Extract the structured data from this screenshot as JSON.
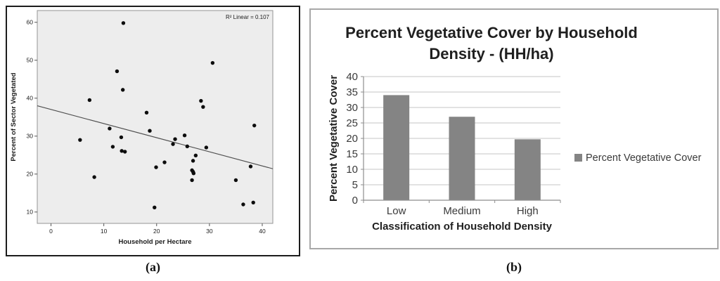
{
  "captions": {
    "a": "(a)",
    "b": "(b)"
  },
  "chart_data": [
    {
      "type": "scatter",
      "panel": "a",
      "title": "",
      "annotation": "R² Linear = 0.107",
      "r_squared_linear": 0.107,
      "xlabel": "Household per Hectare",
      "ylabel": "Percent of Sector Vegetated",
      "xlim": [
        -2.6,
        42.0
      ],
      "ylim": [
        7.0,
        63.1
      ],
      "xticks": [
        0,
        10,
        20,
        30,
        40
      ],
      "yticks": [
        10,
        20,
        30,
        40,
        50,
        60
      ],
      "grid": false,
      "points": [
        [
          13.7,
          59.8
        ],
        [
          12.5,
          47.1
        ],
        [
          13.6,
          42.2
        ],
        [
          7.3,
          39.5
        ],
        [
          30.6,
          49.3
        ],
        [
          28.4,
          39.3
        ],
        [
          28.8,
          37.7
        ],
        [
          18.1,
          36.2
        ],
        [
          38.5,
          32.8
        ],
        [
          11.1,
          32.0
        ],
        [
          18.7,
          31.4
        ],
        [
          25.3,
          30.2
        ],
        [
          13.3,
          29.7
        ],
        [
          5.5,
          29.0
        ],
        [
          23.5,
          29.2
        ],
        [
          23.1,
          27.9
        ],
        [
          25.8,
          27.3
        ],
        [
          29.4,
          27.0
        ],
        [
          11.7,
          27.2
        ],
        [
          13.4,
          26.1
        ],
        [
          14.0,
          25.9
        ],
        [
          27.4,
          24.9
        ],
        [
          26.9,
          23.5
        ],
        [
          21.5,
          23.1
        ],
        [
          19.9,
          21.8
        ],
        [
          37.8,
          22.0
        ],
        [
          26.7,
          21.0
        ],
        [
          26.9,
          20.6
        ],
        [
          27.0,
          20.2
        ],
        [
          26.7,
          18.4
        ],
        [
          35.0,
          18.4
        ],
        [
          8.2,
          19.2
        ],
        [
          36.4,
          12.0
        ],
        [
          38.3,
          12.5
        ],
        [
          19.6,
          11.2
        ]
      ],
      "regression_line": {
        "x1": -2.6,
        "y1": 38.0,
        "x2": 42.0,
        "y2": 21.4
      },
      "colors": {
        "plot_bg": "#ededed",
        "plot_border": "#949494",
        "dot": "#0d0d0d",
        "line": "#4f4f4f",
        "text": "#1c1c1c"
      }
    },
    {
      "type": "bar",
      "panel": "b",
      "title": "Percent Vegetative Cover by Household Density - (HH/ha)",
      "title_lines": [
        "Percent Vegetative Cover by Household",
        "Density - (HH/ha)"
      ],
      "xlabel": "Classification of Household Density",
      "ylabel": "Percent Vegetative Cover",
      "categories": [
        "Low",
        "Medium",
        "High"
      ],
      "values": [
        34,
        27,
        19.7
      ],
      "ylim": [
        0,
        40
      ],
      "yticks": [
        0,
        5,
        10,
        15,
        20,
        25,
        30,
        35,
        40
      ],
      "grid": true,
      "legend": [
        {
          "label": "Percent Vegetative Cover",
          "color": "#848484"
        }
      ],
      "legend_position": "right",
      "colors": {
        "bar": "#848484",
        "grid": "#c6c6c6",
        "axis": "#8e8e8e",
        "text": "#3a3a3a",
        "title": "#1f1f1f"
      }
    }
  ]
}
